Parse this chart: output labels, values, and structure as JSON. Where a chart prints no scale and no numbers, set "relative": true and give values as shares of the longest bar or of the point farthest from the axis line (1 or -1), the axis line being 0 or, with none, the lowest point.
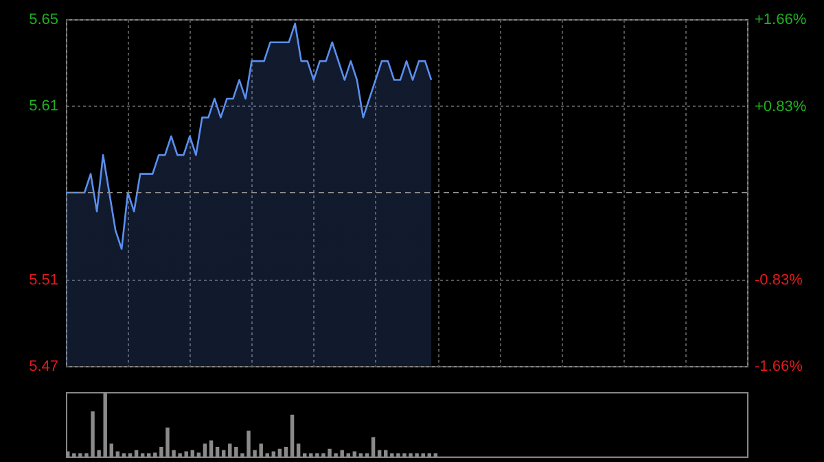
{
  "chart_data": [
    {
      "type": "area",
      "color": "#5b8ff0",
      "grid": true,
      "categories": [
        null,
        null,
        null,
        null,
        null,
        null,
        null,
        null,
        null,
        null,
        null,
        null,
        null,
        null,
        null,
        null,
        null,
        null,
        null,
        null,
        null,
        null,
        null,
        null,
        null,
        null,
        null,
        null,
        null,
        null,
        null,
        null,
        null,
        null,
        null,
        null,
        null,
        null,
        null,
        null,
        null,
        null,
        null,
        null,
        null,
        null,
        null,
        null,
        null,
        null,
        null,
        null,
        null,
        null,
        null,
        null,
        null,
        null,
        null,
        null,
        null,
        null,
        null,
        null,
        null,
        null,
        null,
        null,
        null,
        null,
        null,
        null,
        null,
        null,
        null,
        null,
        null,
        null,
        null,
        null,
        null,
        null,
        null,
        null,
        null,
        null,
        null,
        null,
        null,
        null,
        null,
        null,
        null,
        null,
        null,
        null,
        null,
        null,
        null,
        null,
        null,
        null,
        null,
        null,
        null,
        null,
        null,
        null,
        null,
        null,
        null
      ],
      "values": [
        5.56,
        5.56,
        5.56,
        5.56,
        5.57,
        5.55,
        5.58,
        5.56,
        5.54,
        5.53,
        5.56,
        5.55,
        5.57,
        5.57,
        5.57,
        5.58,
        5.58,
        5.59,
        5.58,
        5.58,
        5.59,
        5.58,
        5.6,
        5.6,
        5.61,
        5.6,
        5.61,
        5.61,
        5.62,
        5.61,
        5.63,
        5.63,
        5.63,
        5.64,
        5.64,
        5.64,
        5.64,
        5.65,
        5.63,
        5.63,
        5.62,
        5.63,
        5.63,
        5.64,
        5.63,
        5.62,
        5.63,
        5.62,
        5.6,
        5.61,
        5.62,
        5.63,
        5.63,
        5.62,
        5.62,
        5.63,
        5.62,
        5.63,
        5.63,
        5.62,
        null,
        null,
        null,
        null,
        null,
        null,
        null,
        null,
        null,
        null,
        null,
        null,
        null,
        null,
        null,
        null,
        null,
        null,
        null,
        null,
        null,
        null,
        null,
        null,
        null,
        null,
        null,
        null,
        null,
        null,
        null,
        null,
        null,
        null,
        null,
        null,
        null,
        null,
        null,
        null,
        null,
        null,
        null,
        null,
        null,
        null,
        null,
        null,
        null,
        null,
        null
      ],
      "ylim": [
        5.4677,
        5.6523
      ],
      "yticks": [
        {
          "value": 5.4677,
          "label": "5.47"
        },
        {
          "value": 5.5138,
          "label": "5.51"
        },
        {
          "value": 5.6062,
          "label": "5.61"
        },
        {
          "value": 5.6523,
          "label": "5.65"
        }
      ],
      "y2lim": [
        -1.66,
        1.66
      ],
      "y2ticks": [
        {
          "value": -1.66,
          "label": "-1.66%"
        },
        {
          "value": -0.83,
          "label": "-0.83%"
        },
        {
          "value": 0.83,
          "label": "+0.83%"
        },
        {
          "value": 1.66,
          "label": "+1.66%"
        }
      ],
      "ref_lines": [
        {
          "axis": "y",
          "value": 5.56,
          "color": "#888888",
          "line_style": "dashed"
        }
      ]
    },
    {
      "type": "bar",
      "relative": true,
      "color": "#8a8a8a",
      "categories": [
        null,
        null,
        null,
        null,
        null,
        null,
        null,
        null,
        null,
        null,
        null,
        null,
        null,
        null,
        null,
        null,
        null,
        null,
        null,
        null,
        null,
        null,
        null,
        null,
        null,
        null,
        null,
        null,
        null,
        null,
        null,
        null,
        null,
        null,
        null,
        null,
        null,
        null,
        null,
        null,
        null,
        null,
        null,
        null,
        null,
        null,
        null,
        null,
        null,
        null,
        null,
        null,
        null,
        null,
        null,
        null,
        null,
        null,
        null,
        null
      ],
      "values": [
        0.08,
        0.05,
        0.05,
        0.05,
        0.7,
        0.1,
        1,
        0.2,
        0.08,
        0.05,
        0.05,
        0.1,
        0.05,
        0.05,
        0.06,
        0.15,
        0.45,
        0.1,
        0.05,
        0.08,
        0.1,
        0.06,
        0.2,
        0.25,
        0.15,
        0.1,
        0.2,
        0.15,
        0.05,
        0.4,
        0.1,
        0.2,
        0.05,
        0.08,
        0.12,
        0.15,
        0.65,
        0.2,
        0.05,
        0.05,
        0.05,
        0.05,
        0.12,
        0.05,
        0.1,
        0.05,
        0.08,
        0.05,
        0.05,
        0.3,
        0.1,
        0.1,
        0.05,
        0.05,
        0.05,
        0.05,
        0.05,
        0.05,
        0.05,
        0.05
      ]
    }
  ]
}
